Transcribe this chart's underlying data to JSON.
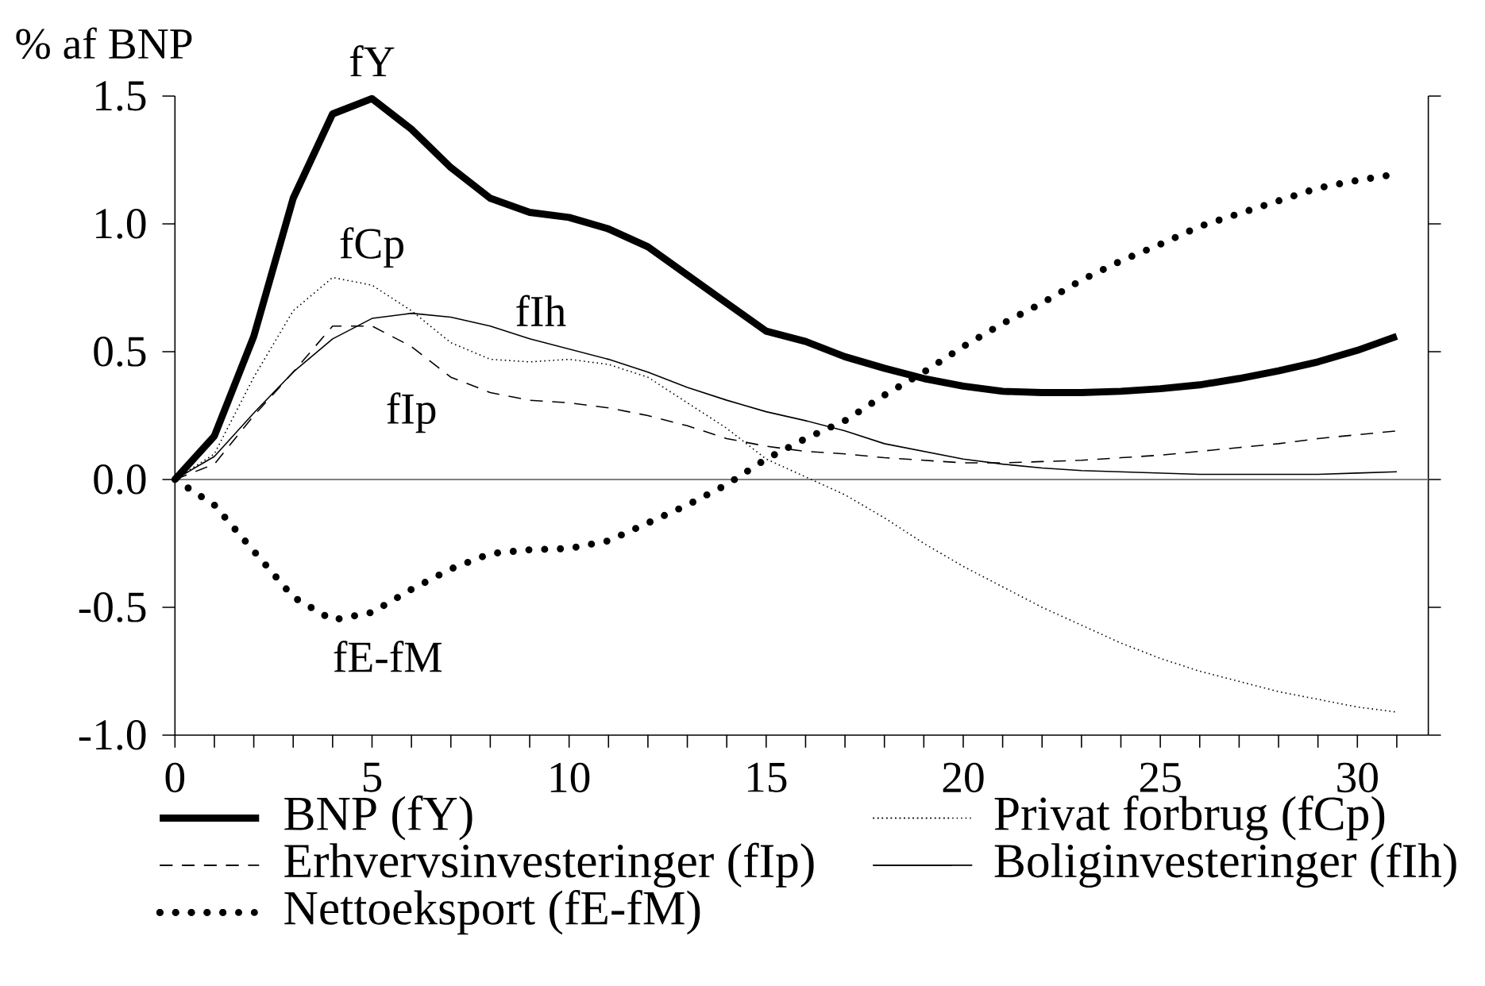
{
  "chart_data": {
    "type": "line",
    "ylabel": "% af BNP",
    "x": [
      0,
      1,
      2,
      3,
      4,
      5,
      6,
      7,
      8,
      9,
      10,
      11,
      12,
      13,
      14,
      15,
      16,
      17,
      18,
      19,
      20,
      21,
      22,
      23,
      24,
      25,
      26,
      27,
      28,
      29,
      30,
      31
    ],
    "series": [
      {
        "name": "BNP (fY)",
        "color": "#000000",
        "line_style": "solid",
        "values": [
          0,
          0.17,
          0.56,
          1.1,
          1.43,
          1.49,
          1.37,
          1.22,
          1.1,
          1.045,
          1.025,
          0.98,
          0.91,
          0.8,
          0.69,
          0.58,
          0.54,
          0.48,
          0.435,
          0.395,
          0.365,
          0.345,
          0.34,
          0.34,
          0.345,
          0.355,
          0.37,
          0.395,
          0.425,
          0.46,
          0.505,
          0.56
        ]
      },
      {
        "name": "Privat forbrug (fCp)",
        "color": "#000000",
        "line_style": "dotted",
        "values": [
          0,
          0.1,
          0.4,
          0.66,
          0.79,
          0.76,
          0.66,
          0.535,
          0.47,
          0.46,
          0.47,
          0.45,
          0.4,
          0.3,
          0.2,
          0.08,
          0.01,
          -0.06,
          -0.15,
          -0.25,
          -0.34,
          -0.42,
          -0.5,
          -0.57,
          -0.64,
          -0.7,
          -0.75,
          -0.79,
          -0.83,
          -0.86,
          -0.89,
          -0.91
        ]
      },
      {
        "name": "Erhvervsinvesteringer (fIp)",
        "color": "#000000",
        "line_style": "dashed",
        "values": [
          0,
          0.06,
          0.25,
          0.42,
          0.6,
          0.6,
          0.52,
          0.4,
          0.34,
          0.31,
          0.3,
          0.28,
          0.25,
          0.21,
          0.16,
          0.13,
          0.11,
          0.1,
          0.085,
          0.075,
          0.065,
          0.065,
          0.07,
          0.075,
          0.085,
          0.095,
          0.11,
          0.125,
          0.14,
          0.16,
          0.175,
          0.19
        ]
      },
      {
        "name": "Boliginvesteringer (fIh)",
        "color": "#000000",
        "line_style": "solid",
        "values": [
          0,
          0.09,
          0.26,
          0.42,
          0.55,
          0.63,
          0.65,
          0.635,
          0.6,
          0.55,
          0.51,
          0.47,
          0.42,
          0.36,
          0.31,
          0.265,
          0.23,
          0.19,
          0.14,
          0.11,
          0.08,
          0.06,
          0.045,
          0.035,
          0.03,
          0.025,
          0.02,
          0.02,
          0.02,
          0.02,
          0.025,
          0.03
        ]
      },
      {
        "name": "Nettoeksport (fE-fM)",
        "color": "#000000",
        "line_style": "dotted",
        "values": [
          0,
          -0.1,
          -0.28,
          -0.46,
          -0.55,
          -0.52,
          -0.43,
          -0.35,
          -0.29,
          -0.275,
          -0.27,
          -0.24,
          -0.17,
          -0.1,
          -0.02,
          0.08,
          0.16,
          0.23,
          0.33,
          0.42,
          0.52,
          0.61,
          0.69,
          0.78,
          0.855,
          0.92,
          0.99,
          1.04,
          1.09,
          1.14,
          1.17,
          1.195
        ]
      }
    ],
    "xlim": [
      0,
      31.8
    ],
    "ylim": [
      -1,
      1.5
    ],
    "xticks": [
      0,
      {
        "value": 1,
        "label": null
      },
      {
        "value": 2,
        "label": null
      },
      {
        "value": 3,
        "label": null
      },
      {
        "value": 4,
        "label": null
      },
      5,
      {
        "value": 6,
        "label": null
      },
      {
        "value": 7,
        "label": null
      },
      {
        "value": 8,
        "label": null
      },
      {
        "value": 9,
        "label": null
      },
      10,
      {
        "value": 11,
        "label": null
      },
      {
        "value": 12,
        "label": null
      },
      {
        "value": 13,
        "label": null
      },
      {
        "value": 14,
        "label": null
      },
      15,
      {
        "value": 16,
        "label": null
      },
      {
        "value": 17,
        "label": null
      },
      {
        "value": 18,
        "label": null
      },
      {
        "value": 19,
        "label": null
      },
      20,
      {
        "value": 21,
        "label": null
      },
      {
        "value": 22,
        "label": null
      },
      {
        "value": 23,
        "label": null
      },
      {
        "value": 24,
        "label": null
      },
      25,
      {
        "value": 26,
        "label": null
      },
      {
        "value": 27,
        "label": null
      },
      {
        "value": 28,
        "label": null
      },
      {
        "value": 29,
        "label": null
      },
      30,
      {
        "value": 31,
        "label": null
      }
    ],
    "yticks": [
      {
        "value": -1,
        "label": "-1.0"
      },
      -0.5,
      {
        "value": 0,
        "label": "0.0"
      },
      0.5,
      {
        "value": 1,
        "label": "1.0"
      },
      1.5
    ],
    "ref_lines": [
      {
        "axis": "y",
        "value": 0,
        "color": "#808080"
      }
    ],
    "annotations": [
      {
        "text": "fY",
        "x": 5,
        "y": 1.49
      },
      {
        "text": "fCp",
        "x": 5,
        "y": 0.76
      },
      {
        "text": "fIh",
        "x": 9,
        "y": 0.55
      },
      {
        "text": "fIp",
        "x": 6,
        "y": 0.52
      },
      {
        "text": "fE-fM",
        "x": 4,
        "y": -0.55
      }
    ],
    "legend": "bottom"
  }
}
